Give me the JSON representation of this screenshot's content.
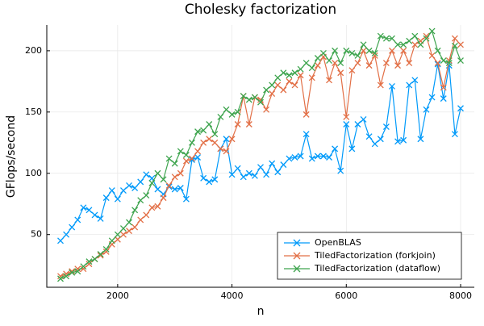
{
  "chart_data": {
    "type": "line",
    "title": "Cholesky factorization",
    "x_label": "n",
    "y_label": "GFlops/second",
    "x": [
      1000,
      1100,
      1200,
      1300,
      1400,
      1500,
      1600,
      1700,
      1800,
      1900,
      2000,
      2100,
      2200,
      2300,
      2400,
      2500,
      2600,
      2700,
      2800,
      2900,
      3000,
      3100,
      3200,
      3300,
      3400,
      3500,
      3600,
      3700,
      3800,
      3900,
      4000,
      4100,
      4200,
      4300,
      4400,
      4500,
      4600,
      4700,
      4800,
      4900,
      5000,
      5100,
      5200,
      5300,
      5400,
      5500,
      5600,
      5700,
      5800,
      5900,
      6000,
      6100,
      6200,
      6300,
      6400,
      6500,
      6600,
      6700,
      6800,
      6900,
      7000,
      7100,
      7200,
      7300,
      7400,
      7500,
      7600,
      7700,
      7800,
      7900,
      8000
    ],
    "series": [
      {
        "name": "OpenBLAS",
        "color": "#009AFA",
        "values": [
          45,
          50,
          56,
          62,
          72,
          70,
          66,
          63,
          80,
          86,
          79,
          86,
          90,
          88,
          93,
          99,
          96,
          87,
          83,
          89,
          87,
          88,
          79,
          111,
          113,
          96,
          93,
          95,
          120,
          128,
          99,
          104,
          97,
          100,
          98,
          105,
          99,
          108,
          101,
          107,
          112,
          113,
          114,
          132,
          112,
          114,
          114,
          113,
          120,
          102,
          140,
          120,
          140,
          144,
          130,
          124,
          128,
          138,
          171,
          126,
          127,
          172,
          176,
          128,
          152,
          162,
          189,
          161,
          188,
          132,
          153
        ]
      },
      {
        "name": "TiledFactorization (forkjoin)",
        "color": "#E26F46",
        "values": [
          16,
          18,
          20,
          22,
          22,
          26,
          30,
          33,
          36,
          42,
          46,
          50,
          53,
          56,
          62,
          66,
          72,
          73,
          80,
          90,
          97,
          100,
          110,
          112,
          118,
          125,
          128,
          125,
          120,
          118,
          128,
          140,
          163,
          140,
          162,
          160,
          152,
          165,
          172,
          168,
          175,
          172,
          180,
          148,
          178,
          188,
          195,
          176,
          190,
          182,
          146,
          184,
          190,
          200,
          188,
          196,
          172,
          190,
          200,
          188,
          200,
          190,
          205,
          208,
          212,
          196,
          190,
          170,
          192,
          210,
          205
        ]
      },
      {
        "name": "TiledFactorization (dataflow)",
        "color": "#3EA44E",
        "values": [
          14,
          16,
          19,
          20,
          24,
          28,
          30,
          34,
          38,
          45,
          50,
          55,
          60,
          70,
          78,
          82,
          92,
          100,
          95,
          112,
          108,
          118,
          115,
          125,
          134,
          135,
          140,
          132,
          146,
          152,
          148,
          150,
          163,
          160,
          162,
          158,
          168,
          172,
          178,
          182,
          180,
          182,
          185,
          190,
          186,
          194,
          198,
          192,
          200,
          190,
          200,
          198,
          196,
          205,
          200,
          198,
          212,
          210,
          210,
          205,
          205,
          208,
          212,
          205,
          210,
          216,
          200,
          192,
          190,
          204,
          192
        ]
      }
    ],
    "xlim": [
      760,
      8240
    ],
    "ylim": [
      7,
      221
    ],
    "xticks": [
      2000,
      4000,
      6000,
      8000
    ],
    "yticks": [
      50,
      100,
      150,
      200
    ],
    "grid": true,
    "legend_position": "bottom-right"
  }
}
